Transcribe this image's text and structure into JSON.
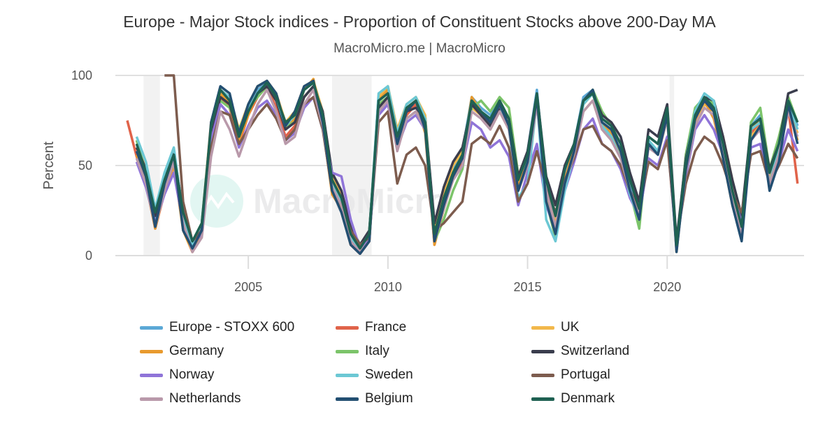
{
  "chart_data": {
    "type": "line",
    "title": "Europe - Major Stock indices - Proportion of Constituent Stocks above 200-Day MA",
    "subtitle": "MacroMicro.me | MacroMicro",
    "ylabel": "Percent",
    "xlabel": "",
    "ylim": [
      0,
      100
    ],
    "xlim": [
      2000.24,
      2024.9
    ],
    "yticks": [
      "0",
      "50",
      "100"
    ],
    "xticks": [
      "2005",
      "2010",
      "2015",
      "2020"
    ],
    "grid": "horizontal",
    "legend": "bottom",
    "watermark": "MacroMicro",
    "shaded_periods": [
      [
        "2001-04",
        "2001-11"
      ],
      [
        "2008-01",
        "2009-06"
      ],
      [
        "2020-02",
        "2020-04"
      ]
    ],
    "x": [
      "2000-09",
      "2001-01",
      "2001-05",
      "2001-09",
      "2002-01",
      "2002-05",
      "2002-09",
      "2003-01",
      "2003-05",
      "2003-09",
      "2004-01",
      "2004-05",
      "2004-09",
      "2005-01",
      "2005-05",
      "2005-09",
      "2006-01",
      "2006-05",
      "2006-09",
      "2007-01",
      "2007-05",
      "2007-09",
      "2008-01",
      "2008-05",
      "2008-09",
      "2009-01",
      "2009-05",
      "2009-09",
      "2010-01",
      "2010-05",
      "2010-09",
      "2011-01",
      "2011-05",
      "2011-09",
      "2012-01",
      "2012-05",
      "2012-09",
      "2013-01",
      "2013-05",
      "2013-09",
      "2014-01",
      "2014-05",
      "2014-09",
      "2015-01",
      "2015-05",
      "2015-09",
      "2016-01",
      "2016-05",
      "2016-09",
      "2017-01",
      "2017-05",
      "2017-09",
      "2018-01",
      "2018-05",
      "2018-09",
      "2019-01",
      "2019-05",
      "2019-09",
      "2020-01",
      "2020-05",
      "2020-09",
      "2021-01",
      "2021-05",
      "2021-09",
      "2022-01",
      "2022-05",
      "2022-09",
      "2023-01",
      "2023-05",
      "2023-09",
      "2024-01",
      "2024-05",
      "2024-09"
    ],
    "series": [
      {
        "name": "Europe - STOXX 600",
        "color": "#5ba8d6",
        "values": [
          null,
          58,
          42,
          18,
          38,
          52,
          18,
          4,
          14,
          72,
          92,
          88,
          68,
          82,
          92,
          96,
          88,
          72,
          78,
          92,
          96,
          78,
          38,
          28,
          8,
          2,
          9,
          88,
          92,
          62,
          82,
          86,
          72,
          8,
          28,
          48,
          58,
          88,
          82,
          78,
          86,
          76,
          38,
          58,
          92,
          38,
          18,
          46,
          62,
          88,
          92,
          76,
          72,
          62,
          38,
          22,
          66,
          62,
          82,
          4,
          52,
          78,
          88,
          82,
          58,
          32,
          12,
          72,
          78,
          44,
          62,
          88,
          72
        ]
      },
      {
        "name": "France",
        "color": "#e0634a",
        "values": [
          75,
          55,
          40,
          15,
          35,
          50,
          15,
          2,
          12,
          68,
          88,
          82,
          62,
          78,
          88,
          94,
          82,
          66,
          72,
          88,
          94,
          72,
          35,
          25,
          6,
          1,
          8,
          82,
          88,
          60,
          78,
          84,
          70,
          6,
          26,
          44,
          52,
          84,
          78,
          72,
          84,
          72,
          36,
          52,
          88,
          36,
          16,
          42,
          58,
          84,
          90,
          72,
          68,
          58,
          36,
          20,
          62,
          58,
          80,
          3,
          48,
          74,
          86,
          80,
          56,
          30,
          10,
          68,
          74,
          42,
          58,
          82,
          40
        ]
      },
      {
        "name": "UK",
        "color": "#f2b84b",
        "values": [
          null,
          62,
          48,
          22,
          42,
          56,
          16,
          3,
          18,
          74,
          92,
          88,
          70,
          84,
          94,
          97,
          90,
          74,
          80,
          94,
          97,
          80,
          45,
          34,
          14,
          4,
          12,
          88,
          94,
          70,
          84,
          88,
          78,
          14,
          34,
          50,
          58,
          82,
          78,
          70,
          80,
          70,
          36,
          50,
          86,
          34,
          18,
          42,
          58,
          80,
          86,
          70,
          66,
          56,
          36,
          22,
          62,
          56,
          76,
          4,
          46,
          72,
          84,
          80,
          66,
          42,
          20,
          66,
          72,
          42,
          56,
          82,
          68
        ]
      },
      {
        "name": "Germany",
        "color": "#e89a2e",
        "values": [
          null,
          56,
          40,
          15,
          36,
          50,
          14,
          2,
          12,
          70,
          90,
          84,
          64,
          78,
          90,
          96,
          86,
          70,
          76,
          92,
          98,
          72,
          34,
          26,
          6,
          2,
          8,
          86,
          92,
          60,
          80,
          86,
          68,
          6,
          26,
          44,
          54,
          88,
          80,
          74,
          84,
          72,
          38,
          54,
          88,
          36,
          16,
          42,
          60,
          86,
          92,
          74,
          68,
          58,
          34,
          18,
          62,
          58,
          82,
          2,
          50,
          78,
          86,
          76,
          54,
          28,
          10,
          70,
          76,
          40,
          58,
          84,
          64
        ]
      },
      {
        "name": "Italy",
        "color": "#7cc46a",
        "values": [
          null,
          64,
          46,
          22,
          42,
          58,
          22,
          8,
          18,
          66,
          86,
          82,
          70,
          82,
          88,
          94,
          86,
          72,
          74,
          88,
          94,
          76,
          42,
          30,
          12,
          5,
          14,
          84,
          88,
          60,
          76,
          80,
          70,
          8,
          20,
          36,
          48,
          82,
          86,
          80,
          88,
          82,
          45,
          52,
          88,
          30,
          10,
          38,
          55,
          86,
          92,
          80,
          72,
          62,
          36,
          15,
          66,
          62,
          80,
          4,
          56,
          82,
          88,
          84,
          62,
          34,
          14,
          74,
          82,
          48,
          66,
          88,
          74
        ]
      },
      {
        "name": "Switzerland",
        "color": "#3a3d4d",
        "values": [
          null,
          60,
          48,
          22,
          44,
          58,
          24,
          6,
          16,
          68,
          88,
          84,
          66,
          80,
          90,
          94,
          86,
          70,
          74,
          88,
          94,
          80,
          46,
          36,
          16,
          6,
          14,
          82,
          88,
          68,
          80,
          82,
          76,
          18,
          38,
          52,
          60,
          84,
          78,
          72,
          82,
          76,
          44,
          58,
          90,
          44,
          28,
          50,
          62,
          86,
          90,
          78,
          74,
          66,
          46,
          30,
          70,
          66,
          84,
          8,
          54,
          78,
          88,
          86,
          66,
          42,
          22,
          72,
          76,
          48,
          62,
          90,
          92
        ]
      },
      {
        "name": "Norway",
        "color": "#8f74d8",
        "values": [
          null,
          52,
          38,
          18,
          34,
          46,
          18,
          6,
          12,
          64,
          84,
          78,
          60,
          72,
          82,
          86,
          78,
          64,
          68,
          82,
          88,
          70,
          46,
          44,
          20,
          4,
          10,
          78,
          84,
          60,
          74,
          78,
          70,
          12,
          30,
          42,
          50,
          74,
          70,
          60,
          64,
          55,
          28,
          46,
          62,
          28,
          14,
          36,
          52,
          70,
          76,
          62,
          58,
          48,
          32,
          22,
          54,
          50,
          66,
          6,
          44,
          70,
          78,
          70,
          56,
          36,
          18,
          60,
          62,
          40,
          52,
          70,
          58
        ]
      },
      {
        "name": "Sweden",
        "color": "#6cc8d4",
        "values": [
          null,
          66,
          52,
          26,
          46,
          60,
          22,
          6,
          18,
          72,
          92,
          88,
          68,
          82,
          90,
          96,
          88,
          72,
          78,
          92,
          96,
          78,
          40,
          30,
          10,
          4,
          12,
          90,
          94,
          68,
          84,
          88,
          76,
          10,
          28,
          46,
          56,
          86,
          80,
          74,
          84,
          70,
          32,
          40,
          86,
          20,
          8,
          36,
          56,
          84,
          90,
          72,
          66,
          54,
          34,
          20,
          64,
          58,
          80,
          4,
          52,
          80,
          90,
          86,
          58,
          30,
          12,
          70,
          74,
          40,
          60,
          86,
          70
        ]
      },
      {
        "name": "Portugal",
        "color": "#7d5c4e",
        "values": [
          null,
          null,
          null,
          null,
          100,
          100,
          30,
          8,
          14,
          60,
          80,
          78,
          62,
          70,
          78,
          84,
          76,
          64,
          70,
          84,
          88,
          70,
          36,
          28,
          14,
          6,
          10,
          74,
          80,
          40,
          56,
          60,
          50,
          14,
          18,
          24,
          30,
          62,
          66,
          62,
          72,
          60,
          30,
          40,
          58,
          38,
          24,
          42,
          54,
          70,
          72,
          62,
          58,
          50,
          36,
          26,
          52,
          48,
          64,
          8,
          40,
          58,
          66,
          62,
          50,
          34,
          24,
          56,
          58,
          40,
          50,
          62,
          54
        ]
      },
      {
        "name": "Netherlands",
        "color": "#b999aa",
        "values": [
          null,
          54,
          40,
          16,
          36,
          52,
          18,
          2,
          10,
          55,
          80,
          70,
          55,
          70,
          84,
          92,
          80,
          62,
          66,
          84,
          92,
          72,
          38,
          28,
          8,
          2,
          8,
          80,
          86,
          58,
          76,
          80,
          70,
          8,
          26,
          42,
          50,
          80,
          76,
          70,
          80,
          70,
          36,
          50,
          84,
          36,
          16,
          40,
          56,
          80,
          86,
          70,
          64,
          54,
          36,
          22,
          60,
          56,
          76,
          4,
          46,
          72,
          82,
          78,
          56,
          30,
          12,
          64,
          70,
          40,
          56,
          80,
          66
        ]
      },
      {
        "name": "Belgium",
        "color": "#234f72",
        "values": [
          null,
          58,
          44,
          16,
          40,
          56,
          14,
          4,
          14,
          74,
          94,
          90,
          68,
          84,
          94,
          97,
          90,
          72,
          80,
          94,
          97,
          74,
          36,
          24,
          6,
          1,
          8,
          86,
          90,
          62,
          80,
          86,
          70,
          8,
          28,
          44,
          54,
          86,
          80,
          74,
          84,
          72,
          36,
          52,
          88,
          30,
          12,
          40,
          58,
          86,
          92,
          74,
          70,
          58,
          36,
          20,
          62,
          56,
          78,
          2,
          48,
          76,
          86,
          80,
          54,
          28,
          8,
          64,
          72,
          36,
          52,
          84,
          62
        ]
      },
      {
        "name": "Denmark",
        "color": "#1f6152",
        "values": [
          null,
          62,
          46,
          24,
          42,
          56,
          24,
          8,
          18,
          72,
          92,
          86,
          66,
          80,
          90,
          96,
          88,
          74,
          78,
          92,
          96,
          78,
          42,
          32,
          12,
          4,
          12,
          86,
          90,
          66,
          82,
          86,
          74,
          12,
          32,
          46,
          56,
          86,
          80,
          76,
          86,
          76,
          42,
          56,
          90,
          42,
          22,
          48,
          62,
          86,
          90,
          76,
          72,
          62,
          42,
          26,
          66,
          62,
          82,
          6,
          52,
          78,
          88,
          82,
          62,
          36,
          16,
          72,
          76,
          46,
          62,
          86,
          74
        ]
      }
    ]
  }
}
